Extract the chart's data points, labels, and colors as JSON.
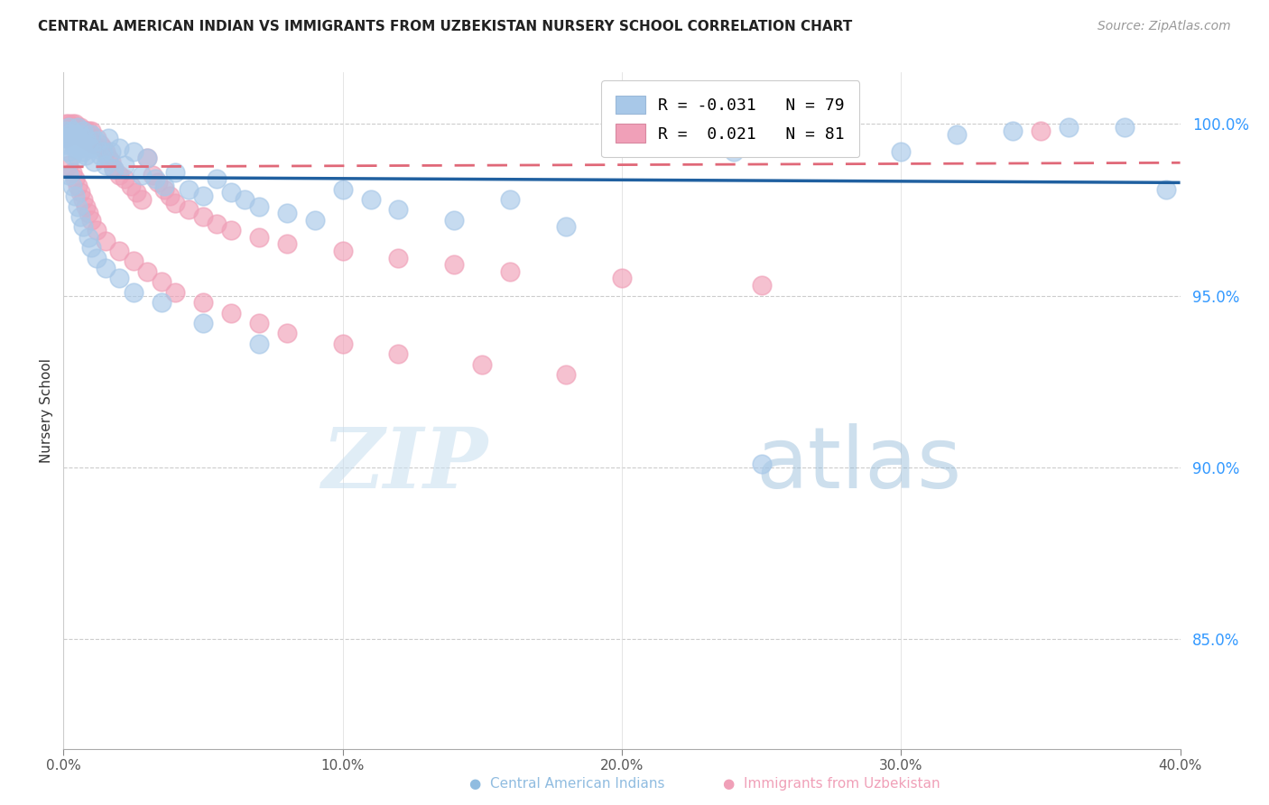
{
  "title": "CENTRAL AMERICAN INDIAN VS IMMIGRANTS FROM UZBEKISTAN NURSERY SCHOOL CORRELATION CHART",
  "source": "Source: ZipAtlas.com",
  "ylabel": "Nursery School",
  "yticks": [
    0.85,
    0.9,
    0.95,
    1.0
  ],
  "ytick_labels": [
    "85.0%",
    "90.0%",
    "95.0%",
    "100.0%"
  ],
  "xmin": 0.0,
  "xmax": 0.4,
  "ymin": 0.818,
  "ymax": 1.015,
  "legend_blue_R": "-0.031",
  "legend_blue_N": "79",
  "legend_pink_R": "0.021",
  "legend_pink_N": "81",
  "legend_label_blue": "Central American Indians",
  "legend_label_pink": "Immigrants from Uzbekistan",
  "blue_color": "#a8c8e8",
  "pink_color": "#f0a0b8",
  "blue_line_color": "#2060a0",
  "pink_line_color": "#e06878",
  "watermark_zip": "ZIP",
  "watermark_atlas": "atlas",
  "blue_line_y_intercept": 0.9845,
  "blue_line_slope": -0.004,
  "pink_line_y_intercept": 0.9875,
  "pink_line_slope": 0.003,
  "blue_scatter_x": [
    0.001,
    0.001,
    0.001,
    0.002,
    0.002,
    0.002,
    0.003,
    0.003,
    0.003,
    0.004,
    0.004,
    0.005,
    0.005,
    0.005,
    0.006,
    0.006,
    0.007,
    0.007,
    0.008,
    0.008,
    0.009,
    0.01,
    0.01,
    0.011,
    0.012,
    0.013,
    0.014,
    0.015,
    0.016,
    0.017,
    0.018,
    0.02,
    0.022,
    0.025,
    0.028,
    0.03,
    0.033,
    0.036,
    0.04,
    0.045,
    0.05,
    0.055,
    0.06,
    0.065,
    0.07,
    0.08,
    0.09,
    0.1,
    0.11,
    0.12,
    0.14,
    0.16,
    0.18,
    0.2,
    0.22,
    0.24,
    0.26,
    0.28,
    0.3,
    0.32,
    0.34,
    0.36,
    0.38,
    0.395,
    0.002,
    0.003,
    0.004,
    0.005,
    0.006,
    0.007,
    0.009,
    0.01,
    0.012,
    0.015,
    0.02,
    0.025,
    0.035,
    0.05,
    0.07,
    0.25
  ],
  "blue_scatter_y": [
    0.998,
    0.996,
    0.994,
    0.999,
    0.997,
    0.992,
    0.998,
    0.995,
    0.991,
    0.997,
    0.993,
    0.999,
    0.996,
    0.99,
    0.997,
    0.993,
    0.998,
    0.992,
    0.996,
    0.991,
    0.994,
    0.997,
    0.993,
    0.989,
    0.995,
    0.991,
    0.992,
    0.988,
    0.996,
    0.992,
    0.987,
    0.993,
    0.988,
    0.992,
    0.985,
    0.99,
    0.984,
    0.982,
    0.986,
    0.981,
    0.979,
    0.984,
    0.98,
    0.978,
    0.976,
    0.974,
    0.972,
    0.981,
    0.978,
    0.975,
    0.972,
    0.978,
    0.97,
    0.998,
    0.995,
    0.992,
    0.998,
    0.995,
    0.992,
    0.997,
    0.998,
    0.999,
    0.999,
    0.981,
    0.985,
    0.982,
    0.979,
    0.976,
    0.973,
    0.97,
    0.967,
    0.964,
    0.961,
    0.958,
    0.955,
    0.951,
    0.948,
    0.942,
    0.936,
    0.901
  ],
  "pink_scatter_x": [
    0.001,
    0.001,
    0.001,
    0.001,
    0.002,
    0.002,
    0.002,
    0.003,
    0.003,
    0.003,
    0.004,
    0.004,
    0.004,
    0.005,
    0.005,
    0.006,
    0.006,
    0.007,
    0.007,
    0.008,
    0.008,
    0.009,
    0.009,
    0.01,
    0.01,
    0.011,
    0.012,
    0.013,
    0.014,
    0.015,
    0.016,
    0.017,
    0.018,
    0.02,
    0.022,
    0.024,
    0.026,
    0.028,
    0.03,
    0.032,
    0.034,
    0.036,
    0.038,
    0.04,
    0.045,
    0.05,
    0.055,
    0.06,
    0.07,
    0.08,
    0.1,
    0.12,
    0.14,
    0.16,
    0.2,
    0.25,
    0.35,
    0.002,
    0.003,
    0.004,
    0.005,
    0.006,
    0.007,
    0.008,
    0.009,
    0.01,
    0.012,
    0.015,
    0.02,
    0.025,
    0.03,
    0.035,
    0.04,
    0.05,
    0.06,
    0.07,
    0.08,
    0.1,
    0.12,
    0.15,
    0.18
  ],
  "pink_scatter_y": [
    1.0,
    0.999,
    0.998,
    0.996,
    1.0,
    0.999,
    0.997,
    1.0,
    0.999,
    0.997,
    1.0,
    0.999,
    0.997,
    0.999,
    0.997,
    0.999,
    0.997,
    0.998,
    0.996,
    0.998,
    0.996,
    0.998,
    0.995,
    0.998,
    0.995,
    0.994,
    0.996,
    0.994,
    0.993,
    0.992,
    0.99,
    0.989,
    0.987,
    0.985,
    0.984,
    0.982,
    0.98,
    0.978,
    0.99,
    0.985,
    0.983,
    0.981,
    0.979,
    0.977,
    0.975,
    0.973,
    0.971,
    0.969,
    0.967,
    0.965,
    0.963,
    0.961,
    0.959,
    0.957,
    0.955,
    0.953,
    0.998,
    0.988,
    0.986,
    0.984,
    0.982,
    0.98,
    0.978,
    0.976,
    0.974,
    0.972,
    0.969,
    0.966,
    0.963,
    0.96,
    0.957,
    0.954,
    0.951,
    0.948,
    0.945,
    0.942,
    0.939,
    0.936,
    0.933,
    0.93,
    0.927
  ]
}
